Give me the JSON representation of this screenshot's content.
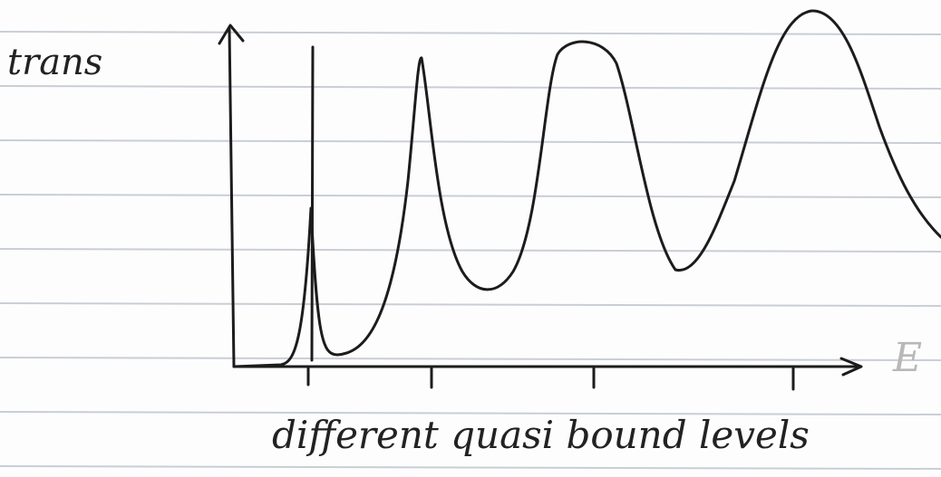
{
  "y_label": "trans",
  "x_label": "E",
  "caption": "different quasi bound levels"
}
